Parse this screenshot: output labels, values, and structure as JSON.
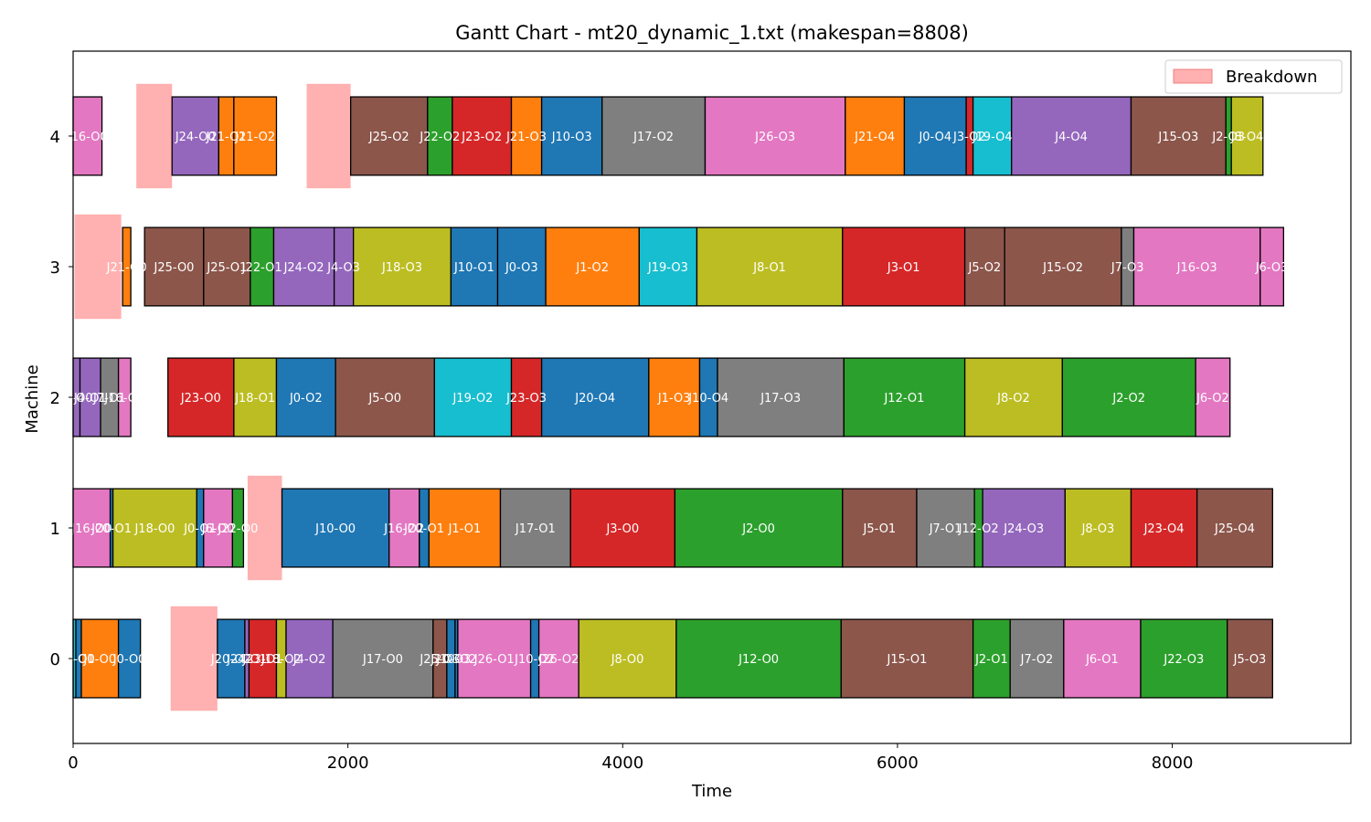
{
  "chart_data": {
    "type": "gantt",
    "title": "Gantt Chart - mt20_dynamic_1.txt (makespan=8808)",
    "xlabel": "Time",
    "ylabel": "Machine",
    "xlim": [
      0,
      9300
    ],
    "ylim": [
      -0.65,
      4.65
    ],
    "xticks": [
      0,
      2000,
      4000,
      6000,
      8000
    ],
    "yticks": [
      0,
      1,
      2,
      3,
      4
    ],
    "legend": {
      "position": "top-right",
      "entries": [
        {
          "label": "Breakdown",
          "color": "#ffb0b0"
        }
      ]
    },
    "colors": {
      "blue": "#1f77b4",
      "orange": "#ff7f0e",
      "green": "#2ca02c",
      "red": "#d62728",
      "purple": "#9467bd",
      "brown": "#8c564b",
      "pink": "#e377c2",
      "gray": "#7f7f7f",
      "olive": "#bcbd22",
      "cyan": "#17becf",
      "breakdown": "#ffb0b0"
    },
    "breakdowns": [
      {
        "machine": 4,
        "start": 460,
        "end": 720
      },
      {
        "machine": 4,
        "start": 1700,
        "end": 2020
      },
      {
        "machine": 3,
        "start": 10,
        "end": 350
      },
      {
        "machine": 1,
        "start": 1270,
        "end": 1520
      },
      {
        "machine": 0,
        "start": 710,
        "end": 1050
      }
    ],
    "tasks": [
      {
        "machine": 4,
        "label": "J16-O0",
        "start": 0,
        "end": 210,
        "color": "pink"
      },
      {
        "machine": 4,
        "label": "J24-O0",
        "start": 720,
        "end": 1060,
        "color": "purple"
      },
      {
        "machine": 4,
        "label": "J21-O1",
        "start": 1060,
        "end": 1170,
        "color": "orange"
      },
      {
        "machine": 4,
        "label": "J21-O2",
        "start": 1170,
        "end": 1480,
        "color": "orange"
      },
      {
        "machine": 4,
        "label": "J25-O2",
        "start": 2020,
        "end": 2580,
        "color": "brown"
      },
      {
        "machine": 4,
        "label": "J22-O2",
        "start": 2580,
        "end": 2760,
        "color": "green"
      },
      {
        "machine": 4,
        "label": "J23-O2",
        "start": 2760,
        "end": 3190,
        "color": "red"
      },
      {
        "machine": 4,
        "label": "J21-O3",
        "start": 3190,
        "end": 3410,
        "color": "orange"
      },
      {
        "machine": 4,
        "label": "J10-O3",
        "start": 3410,
        "end": 3850,
        "color": "blue"
      },
      {
        "machine": 4,
        "label": "J17-O2",
        "start": 3850,
        "end": 4600,
        "color": "gray"
      },
      {
        "machine": 4,
        "label": "J26-O3",
        "start": 4600,
        "end": 5620,
        "color": "pink"
      },
      {
        "machine": 4,
        "label": "J21-O4",
        "start": 5620,
        "end": 6050,
        "color": "orange"
      },
      {
        "machine": 4,
        "label": "J0-O4",
        "start": 6050,
        "end": 6500,
        "color": "blue"
      },
      {
        "machine": 4,
        "label": "J3-O2",
        "start": 6500,
        "end": 6550,
        "color": "red"
      },
      {
        "machine": 4,
        "label": "J19-O4",
        "start": 6550,
        "end": 6830,
        "color": "cyan"
      },
      {
        "machine": 4,
        "label": "J4-O4",
        "start": 6830,
        "end": 7700,
        "color": "purple"
      },
      {
        "machine": 4,
        "label": "J15-O3",
        "start": 7700,
        "end": 8390,
        "color": "brown"
      },
      {
        "machine": 4,
        "label": "J2-O3",
        "start": 8390,
        "end": 8430,
        "color": "green"
      },
      {
        "machine": 4,
        "label": "J8-O4",
        "start": 8430,
        "end": 8660,
        "color": "olive"
      },
      {
        "machine": 3,
        "label": "J21-O0",
        "start": 360,
        "end": 420,
        "color": "orange"
      },
      {
        "machine": 3,
        "label": "J25-O0",
        "start": 520,
        "end": 950,
        "color": "brown"
      },
      {
        "machine": 3,
        "label": "J25-O1",
        "start": 950,
        "end": 1290,
        "color": "brown"
      },
      {
        "machine": 3,
        "label": "J22-O1",
        "start": 1290,
        "end": 1460,
        "color": "green"
      },
      {
        "machine": 3,
        "label": "J24-O2",
        "start": 1460,
        "end": 1900,
        "color": "purple"
      },
      {
        "machine": 3,
        "label": "J4-O3",
        "start": 1900,
        "end": 2040,
        "color": "purple"
      },
      {
        "machine": 3,
        "label": "J18-O3",
        "start": 2040,
        "end": 2750,
        "color": "olive"
      },
      {
        "machine": 3,
        "label": "J10-O1",
        "start": 2750,
        "end": 3090,
        "color": "blue"
      },
      {
        "machine": 3,
        "label": "J0-O3",
        "start": 3090,
        "end": 3440,
        "color": "blue"
      },
      {
        "machine": 3,
        "label": "J1-O2",
        "start": 3440,
        "end": 4120,
        "color": "orange"
      },
      {
        "machine": 3,
        "label": "J19-O3",
        "start": 4120,
        "end": 4540,
        "color": "cyan"
      },
      {
        "machine": 3,
        "label": "J8-O1",
        "start": 4540,
        "end": 5600,
        "color": "olive"
      },
      {
        "machine": 3,
        "label": "J3-O1",
        "start": 5600,
        "end": 6490,
        "color": "red"
      },
      {
        "machine": 3,
        "label": "J5-O2",
        "start": 6490,
        "end": 6780,
        "color": "brown"
      },
      {
        "machine": 3,
        "label": "J15-O2",
        "start": 6780,
        "end": 7630,
        "color": "brown"
      },
      {
        "machine": 3,
        "label": "J7-O3",
        "start": 7630,
        "end": 7720,
        "color": "gray"
      },
      {
        "machine": 3,
        "label": "J16-O3",
        "start": 7720,
        "end": 8640,
        "color": "pink"
      },
      {
        "machine": 3,
        "label": "J6-O3",
        "start": 8640,
        "end": 8810,
        "color": "pink"
      },
      {
        "machine": 2,
        "label": "J4-O0",
        "start": 0,
        "end": 50,
        "color": "purple"
      },
      {
        "machine": 2,
        "label": "J4-O1",
        "start": 50,
        "end": 200,
        "color": "purple"
      },
      {
        "machine": 2,
        "label": "J7-O1",
        "start": 200,
        "end": 330,
        "color": "gray"
      },
      {
        "machine": 2,
        "label": "J16-O1",
        "start": 330,
        "end": 420,
        "color": "pink"
      },
      {
        "machine": 2,
        "label": "J23-O0",
        "start": 690,
        "end": 1170,
        "color": "red"
      },
      {
        "machine": 2,
        "label": "J18-O1",
        "start": 1170,
        "end": 1480,
        "color": "olive"
      },
      {
        "machine": 2,
        "label": "J0-O2",
        "start": 1480,
        "end": 1910,
        "color": "blue"
      },
      {
        "machine": 2,
        "label": "J5-O0",
        "start": 1910,
        "end": 2630,
        "color": "brown"
      },
      {
        "machine": 2,
        "label": "J19-O2",
        "start": 2630,
        "end": 3190,
        "color": "cyan"
      },
      {
        "machine": 2,
        "label": "J23-O3",
        "start": 3190,
        "end": 3410,
        "color": "red"
      },
      {
        "machine": 2,
        "label": "J20-O4",
        "start": 3410,
        "end": 4190,
        "color": "blue"
      },
      {
        "machine": 2,
        "label": "J1-O3",
        "start": 4190,
        "end": 4560,
        "color": "orange"
      },
      {
        "machine": 2,
        "label": "J10-O4",
        "start": 4560,
        "end": 4690,
        "color": "blue"
      },
      {
        "machine": 2,
        "label": "J17-O3",
        "start": 4690,
        "end": 5610,
        "color": "gray"
      },
      {
        "machine": 2,
        "label": "J12-O1",
        "start": 5610,
        "end": 6490,
        "color": "green"
      },
      {
        "machine": 2,
        "label": "J8-O2",
        "start": 6490,
        "end": 7200,
        "color": "olive"
      },
      {
        "machine": 2,
        "label": "J2-O2",
        "start": 7200,
        "end": 8170,
        "color": "green"
      },
      {
        "machine": 2,
        "label": "J6-O2",
        "start": 8170,
        "end": 8420,
        "color": "pink"
      },
      {
        "machine": 1,
        "label": "J16-O0",
        "start": 0,
        "end": 270,
        "color": "pink"
      },
      {
        "machine": 1,
        "label": "J20-O1",
        "start": 270,
        "end": 290,
        "color": "blue"
      },
      {
        "machine": 1,
        "label": "J18-O0",
        "start": 290,
        "end": 900,
        "color": "olive"
      },
      {
        "machine": 1,
        "label": "J0-O1",
        "start": 900,
        "end": 950,
        "color": "blue"
      },
      {
        "machine": 1,
        "label": "J6-O0",
        "start": 950,
        "end": 1160,
        "color": "pink"
      },
      {
        "machine": 1,
        "label": "J22-O0",
        "start": 1160,
        "end": 1240,
        "color": "green"
      },
      {
        "machine": 1,
        "label": "J10-O0",
        "start": 1520,
        "end": 2300,
        "color": "blue"
      },
      {
        "machine": 1,
        "label": "J16-O2",
        "start": 2300,
        "end": 2520,
        "color": "pink"
      },
      {
        "machine": 1,
        "label": "J20-O1",
        "start": 2520,
        "end": 2590,
        "color": "blue"
      },
      {
        "machine": 1,
        "label": "J1-O1",
        "start": 2590,
        "end": 3110,
        "color": "orange"
      },
      {
        "machine": 1,
        "label": "J17-O1",
        "start": 3110,
        "end": 3620,
        "color": "gray"
      },
      {
        "machine": 1,
        "label": "J3-O0",
        "start": 3620,
        "end": 4380,
        "color": "red"
      },
      {
        "machine": 1,
        "label": "J2-O0",
        "start": 4380,
        "end": 5600,
        "color": "green"
      },
      {
        "machine": 1,
        "label": "J5-O1",
        "start": 5600,
        "end": 6140,
        "color": "brown"
      },
      {
        "machine": 1,
        "label": "J7-O1",
        "start": 6140,
        "end": 6560,
        "color": "gray"
      },
      {
        "machine": 1,
        "label": "J12-O2",
        "start": 6560,
        "end": 6620,
        "color": "green"
      },
      {
        "machine": 1,
        "label": "J24-O3",
        "start": 6620,
        "end": 7220,
        "color": "purple"
      },
      {
        "machine": 1,
        "label": "J8-O3",
        "start": 7220,
        "end": 7700,
        "color": "olive"
      },
      {
        "machine": 1,
        "label": "J23-O4",
        "start": 7700,
        "end": 8180,
        "color": "red"
      },
      {
        "machine": 1,
        "label": "J25-O4",
        "start": 8180,
        "end": 8730,
        "color": "brown"
      },
      {
        "machine": 0,
        "label": "J19-O0",
        "start": 0,
        "end": 20,
        "color": "cyan"
      },
      {
        "machine": 0,
        "label": "J0-O0",
        "start": 20,
        "end": 60,
        "color": "blue"
      },
      {
        "machine": 0,
        "label": "J1-O0",
        "start": 60,
        "end": 330,
        "color": "orange"
      },
      {
        "machine": 0,
        "label": "J0-O0",
        "start": 330,
        "end": 490,
        "color": "blue"
      },
      {
        "machine": 0,
        "label": "J20-O2",
        "start": 1050,
        "end": 1250,
        "color": "blue"
      },
      {
        "machine": 0,
        "label": "J24-O1",
        "start": 1250,
        "end": 1280,
        "color": "purple"
      },
      {
        "machine": 0,
        "label": "J23-O1",
        "start": 1280,
        "end": 1480,
        "color": "red"
      },
      {
        "machine": 0,
        "label": "J18-O2",
        "start": 1480,
        "end": 1550,
        "color": "olive"
      },
      {
        "machine": 0,
        "label": "J4-O2",
        "start": 1550,
        "end": 1890,
        "color": "purple"
      },
      {
        "machine": 0,
        "label": "J17-O0",
        "start": 1890,
        "end": 2620,
        "color": "gray"
      },
      {
        "machine": 0,
        "label": "J25-O3",
        "start": 2620,
        "end": 2720,
        "color": "brown"
      },
      {
        "machine": 0,
        "label": "J20-O3",
        "start": 2720,
        "end": 2780,
        "color": "blue"
      },
      {
        "machine": 0,
        "label": "J10-O2",
        "start": 2780,
        "end": 2800,
        "color": "blue"
      },
      {
        "machine": 0,
        "label": "J26-O1",
        "start": 2800,
        "end": 3330,
        "color": "pink"
      },
      {
        "machine": 0,
        "label": "J10-O2",
        "start": 3330,
        "end": 3390,
        "color": "blue"
      },
      {
        "machine": 0,
        "label": "J26-O2",
        "start": 3390,
        "end": 3680,
        "color": "pink"
      },
      {
        "machine": 0,
        "label": "J8-O0",
        "start": 3680,
        "end": 4390,
        "color": "olive"
      },
      {
        "machine": 0,
        "label": "J12-O0",
        "start": 4390,
        "end": 5590,
        "color": "green"
      },
      {
        "machine": 0,
        "label": "J15-O1",
        "start": 5590,
        "end": 6550,
        "color": "brown"
      },
      {
        "machine": 0,
        "label": "J2-O1",
        "start": 6550,
        "end": 6820,
        "color": "green"
      },
      {
        "machine": 0,
        "label": "J7-O2",
        "start": 6820,
        "end": 7210,
        "color": "gray"
      },
      {
        "machine": 0,
        "label": "J6-O1",
        "start": 7210,
        "end": 7770,
        "color": "pink"
      },
      {
        "machine": 0,
        "label": "J22-O3",
        "start": 7770,
        "end": 8400,
        "color": "green"
      },
      {
        "machine": 0,
        "label": "J5-O3",
        "start": 8400,
        "end": 8730,
        "color": "brown"
      }
    ]
  }
}
